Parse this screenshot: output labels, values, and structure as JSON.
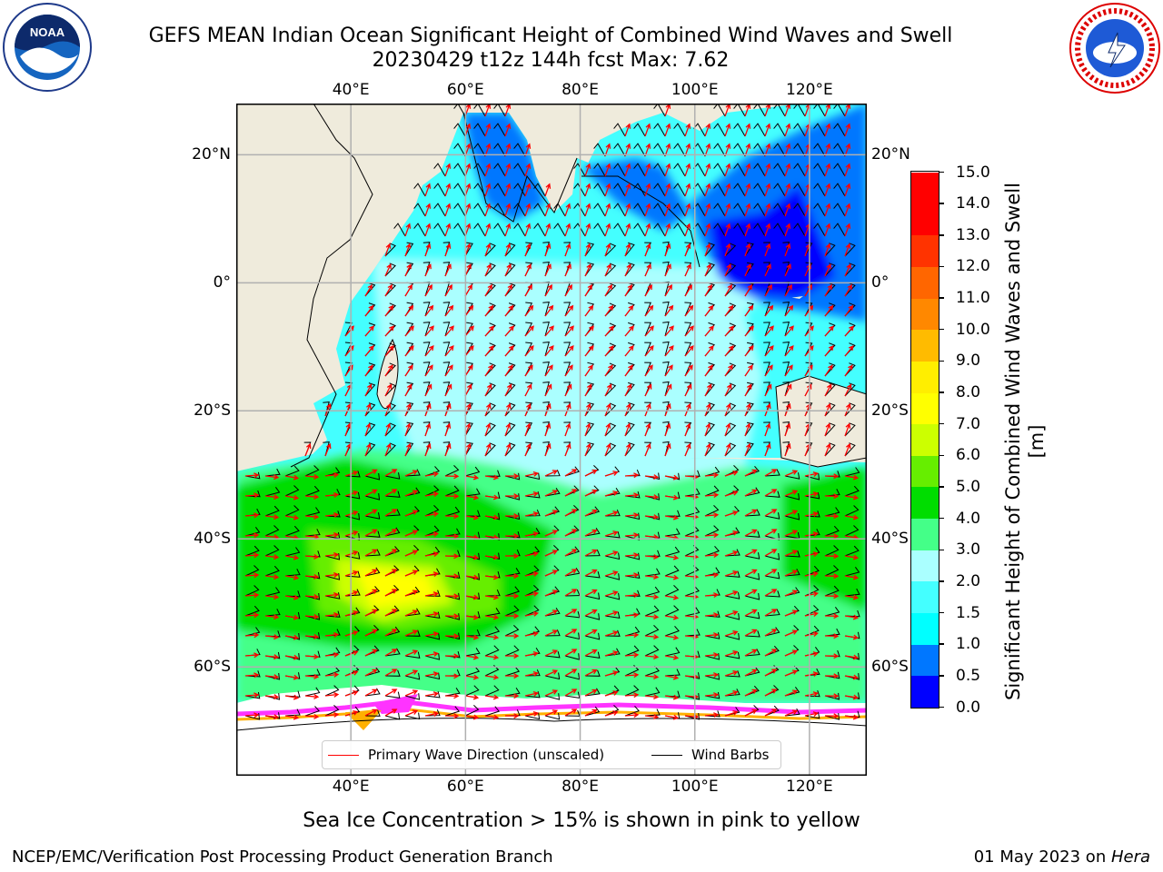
{
  "header": {
    "title_line1": "GEFS MEAN Indian Ocean Significant Height of Combined Wind Waves and Swell",
    "title_line2": "20230429 t12z 144h fcst   Max: 7.62"
  },
  "logos": {
    "left": "noaa-logo",
    "right": "nws-logo"
  },
  "map": {
    "lon_range": [
      20,
      130
    ],
    "lat_range": [
      -77,
      28
    ],
    "lon_ticks": [
      "40°E",
      "60°E",
      "80°E",
      "100°E",
      "120°E"
    ],
    "lon_tick_values": [
      40,
      60,
      80,
      100,
      120
    ],
    "lat_ticks": [
      "20°N",
      "0°",
      "20°S",
      "40°S",
      "60°S"
    ],
    "lat_tick_values": [
      20,
      0,
      -20,
      -40,
      -60
    ],
    "land_color": "#efebdc",
    "arrow_color": "#ff0000",
    "barb_color": "#000000",
    "ice_note_colors": [
      "#ff33ff",
      "#ffb000",
      "#ffff66"
    ]
  },
  "legend": {
    "wave_direction_label": "Primary Wave Direction (unscaled)",
    "wind_barbs_label": "Wind Barbs"
  },
  "colorbar": {
    "title": "Significant Height of Combined Wind Waves and Swell [m]",
    "levels": [
      "0.0",
      "0.5",
      "1.0",
      "1.5",
      "2.0",
      "3.0",
      "4.0",
      "5.0",
      "6.0",
      "7.0",
      "8.0",
      "9.0",
      "10.0",
      "11.0",
      "12.0",
      "13.0",
      "14.0",
      "15.0"
    ],
    "colors": [
      "#0000ff",
      "#0077ff",
      "#00ffff",
      "#44ffff",
      "#aaffff",
      "#44ff88",
      "#00dd00",
      "#66ee00",
      "#ccff00",
      "#ffff00",
      "#ffee00",
      "#ffbb00",
      "#ff8800",
      "#ff6600",
      "#ff3300",
      "#ff0000",
      "#ff0000"
    ]
  },
  "subtitle": "Sea Ice Concentration > 15% is shown in pink to yellow",
  "footer": {
    "left": "NCEP/EMC/Verification Post Processing Product Generation Branch",
    "date": "01 May 2023 on ",
    "host": "Hera"
  }
}
